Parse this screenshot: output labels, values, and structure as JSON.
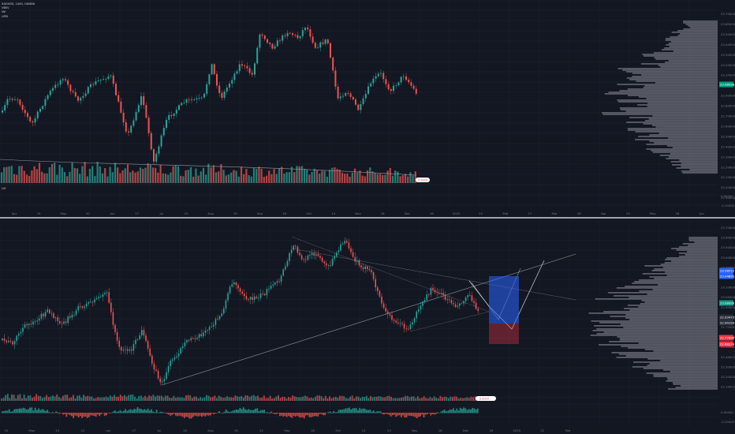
{
  "window": {
    "width": 932,
    "height": 550
  },
  "colors": {
    "background": "#131722",
    "grid": "#1f2330",
    "up": "#26a69a",
    "down": "#ef5350",
    "axis_text": "#787b86",
    "profile": "#9598a1",
    "price_badge": "#089981",
    "red_badge": "#f23645",
    "blue_badge": "#2962ff",
    "divider": "#d1d4dc"
  },
  "top_chart": {
    "legend": [
      "XAGUSD, 1440, OANDA",
      "VBSV",
      "Vol",
      "UPSI"
    ],
    "price_ticks": [
      "23.70000",
      "23.60000",
      "23.50000",
      "23.40000",
      "23.30000",
      "23.20000",
      "23.10000",
      "23.00000",
      "22.90000",
      "22.80000",
      "22.70000",
      "22.60000",
      "22.50000",
      "22.40000",
      "22.30000",
      "22.20000",
      "22.10000",
      "22.00000",
      "21.90000"
    ],
    "current_price": "23.08098",
    "osc_ticks": [
      "0.00000",
      "-0.10000"
    ],
    "osc_label": "UO",
    "date_ticks": [
      "Apr",
      "15",
      "May",
      "20",
      "Jun",
      "17",
      "Jul",
      "15",
      "Aug",
      "19",
      "Sep",
      "16",
      "Oct",
      "14",
      "Nov",
      "18",
      "Dec",
      "16",
      "2020",
      "22",
      "Feb",
      "17",
      "Mar",
      "16",
      "Apr",
      "20",
      "May",
      "18",
      "Jun"
    ],
    "volume_bubble": "0.0000"
  },
  "bottom_chart": {
    "price_ticks": [
      "23.70000",
      "23.60000",
      "23.50000",
      "23.40000",
      "23.30000",
      "23.20000",
      "23.10000",
      "23.00000",
      "22.90000",
      "22.80000",
      "22.70000",
      "22.60000",
      "22.50000",
      "22.40000",
      "22.30000",
      "22.20000",
      "22.10000"
    ],
    "current_price": "23.08098",
    "blue_badge_1": "23.38510",
    "blue_badge_2": "23.34865",
    "grey_badges": [
      "22.93472",
      "22.90199"
    ],
    "red_badge_1": "22.77890",
    "red_badge_2": "22.68224",
    "osc_ticks": [
      "0.00000",
      "-0.10000"
    ],
    "date_ticks": [
      "15",
      "May",
      "13",
      "22",
      "Jun",
      "17",
      "Jul",
      "15",
      "Aug",
      "19",
      "21",
      "Sep",
      "16",
      "Oct",
      "14",
      "23",
      "Nov",
      "18",
      "Dec",
      "16",
      "2020",
      "22",
      "Feb"
    ],
    "volume_bubble": "0.0000"
  }
}
